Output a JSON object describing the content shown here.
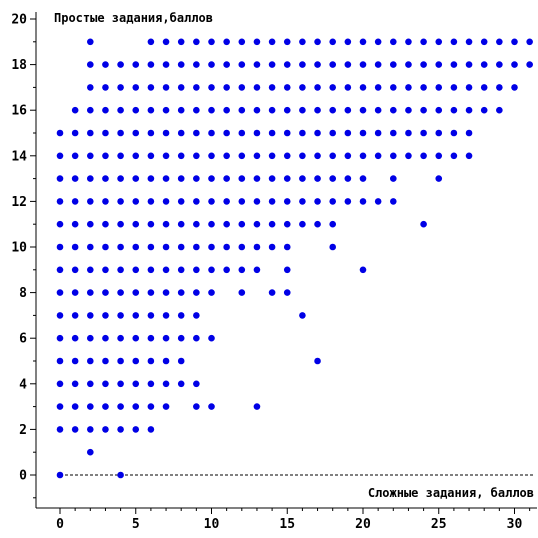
{
  "chart_data": {
    "type": "scatter",
    "ylabel": "Простые задания,баллов",
    "xlabel": "Сложные задания, баллов",
    "xlim": [
      0,
      31
    ],
    "ylim": [
      -1,
      20.5
    ],
    "x_ticks": [
      0,
      5,
      10,
      15,
      20,
      25,
      30
    ],
    "y_ticks": [
      0,
      2,
      4,
      6,
      8,
      10,
      12,
      14,
      16,
      18,
      20
    ],
    "baseline": 0,
    "point_color": "#0000e6",
    "points": [
      [
        0,
        0
      ],
      [
        4,
        0
      ],
      [
        2,
        1
      ],
      [
        0,
        2
      ],
      [
        1,
        2
      ],
      [
        2,
        2
      ],
      [
        3,
        2
      ],
      [
        4,
        2
      ],
      [
        5,
        2
      ],
      [
        6,
        2
      ],
      [
        0,
        3
      ],
      [
        1,
        3
      ],
      [
        2,
        3
      ],
      [
        3,
        3
      ],
      [
        4,
        3
      ],
      [
        5,
        3
      ],
      [
        6,
        3
      ],
      [
        7,
        3
      ],
      [
        9,
        3
      ],
      [
        10,
        3
      ],
      [
        13,
        3
      ],
      [
        0,
        4
      ],
      [
        1,
        4
      ],
      [
        2,
        4
      ],
      [
        3,
        4
      ],
      [
        4,
        4
      ],
      [
        5,
        4
      ],
      [
        6,
        4
      ],
      [
        7,
        4
      ],
      [
        8,
        4
      ],
      [
        9,
        4
      ],
      [
        0,
        5
      ],
      [
        1,
        5
      ],
      [
        2,
        5
      ],
      [
        3,
        5
      ],
      [
        4,
        5
      ],
      [
        5,
        5
      ],
      [
        6,
        5
      ],
      [
        7,
        5
      ],
      [
        8,
        5
      ],
      [
        17,
        5
      ],
      [
        0,
        6
      ],
      [
        1,
        6
      ],
      [
        2,
        6
      ],
      [
        3,
        6
      ],
      [
        4,
        6
      ],
      [
        5,
        6
      ],
      [
        6,
        6
      ],
      [
        7,
        6
      ],
      [
        8,
        6
      ],
      [
        9,
        6
      ],
      [
        10,
        6
      ],
      [
        0,
        7
      ],
      [
        1,
        7
      ],
      [
        2,
        7
      ],
      [
        3,
        7
      ],
      [
        4,
        7
      ],
      [
        5,
        7
      ],
      [
        6,
        7
      ],
      [
        7,
        7
      ],
      [
        8,
        7
      ],
      [
        9,
        7
      ],
      [
        16,
        7
      ],
      [
        0,
        8
      ],
      [
        1,
        8
      ],
      [
        2,
        8
      ],
      [
        3,
        8
      ],
      [
        4,
        8
      ],
      [
        5,
        8
      ],
      [
        6,
        8
      ],
      [
        7,
        8
      ],
      [
        8,
        8
      ],
      [
        9,
        8
      ],
      [
        10,
        8
      ],
      [
        12,
        8
      ],
      [
        14,
        8
      ],
      [
        15,
        8
      ],
      [
        0,
        9
      ],
      [
        1,
        9
      ],
      [
        2,
        9
      ],
      [
        3,
        9
      ],
      [
        4,
        9
      ],
      [
        5,
        9
      ],
      [
        6,
        9
      ],
      [
        7,
        9
      ],
      [
        8,
        9
      ],
      [
        9,
        9
      ],
      [
        10,
        9
      ],
      [
        11,
        9
      ],
      [
        12,
        9
      ],
      [
        13,
        9
      ],
      [
        15,
        9
      ],
      [
        20,
        9
      ],
      [
        0,
        10
      ],
      [
        1,
        10
      ],
      [
        2,
        10
      ],
      [
        3,
        10
      ],
      [
        4,
        10
      ],
      [
        5,
        10
      ],
      [
        6,
        10
      ],
      [
        7,
        10
      ],
      [
        8,
        10
      ],
      [
        9,
        10
      ],
      [
        10,
        10
      ],
      [
        11,
        10
      ],
      [
        12,
        10
      ],
      [
        13,
        10
      ],
      [
        14,
        10
      ],
      [
        15,
        10
      ],
      [
        18,
        10
      ],
      [
        0,
        11
      ],
      [
        1,
        11
      ],
      [
        2,
        11
      ],
      [
        3,
        11
      ],
      [
        4,
        11
      ],
      [
        5,
        11
      ],
      [
        6,
        11
      ],
      [
        7,
        11
      ],
      [
        8,
        11
      ],
      [
        9,
        11
      ],
      [
        10,
        11
      ],
      [
        11,
        11
      ],
      [
        12,
        11
      ],
      [
        13,
        11
      ],
      [
        14,
        11
      ],
      [
        15,
        11
      ],
      [
        16,
        11
      ],
      [
        17,
        11
      ],
      [
        18,
        11
      ],
      [
        24,
        11
      ],
      [
        0,
        12
      ],
      [
        1,
        12
      ],
      [
        2,
        12
      ],
      [
        3,
        12
      ],
      [
        4,
        12
      ],
      [
        5,
        12
      ],
      [
        6,
        12
      ],
      [
        7,
        12
      ],
      [
        8,
        12
      ],
      [
        9,
        12
      ],
      [
        10,
        12
      ],
      [
        11,
        12
      ],
      [
        12,
        12
      ],
      [
        13,
        12
      ],
      [
        14,
        12
      ],
      [
        15,
        12
      ],
      [
        16,
        12
      ],
      [
        17,
        12
      ],
      [
        18,
        12
      ],
      [
        19,
        12
      ],
      [
        20,
        12
      ],
      [
        21,
        12
      ],
      [
        22,
        12
      ],
      [
        0,
        13
      ],
      [
        1,
        13
      ],
      [
        2,
        13
      ],
      [
        3,
        13
      ],
      [
        4,
        13
      ],
      [
        5,
        13
      ],
      [
        6,
        13
      ],
      [
        7,
        13
      ],
      [
        8,
        13
      ],
      [
        9,
        13
      ],
      [
        10,
        13
      ],
      [
        11,
        13
      ],
      [
        12,
        13
      ],
      [
        13,
        13
      ],
      [
        14,
        13
      ],
      [
        15,
        13
      ],
      [
        16,
        13
      ],
      [
        17,
        13
      ],
      [
        18,
        13
      ],
      [
        19,
        13
      ],
      [
        20,
        13
      ],
      [
        22,
        13
      ],
      [
        25,
        13
      ],
      [
        0,
        14
      ],
      [
        1,
        14
      ],
      [
        2,
        14
      ],
      [
        3,
        14
      ],
      [
        4,
        14
      ],
      [
        5,
        14
      ],
      [
        6,
        14
      ],
      [
        7,
        14
      ],
      [
        8,
        14
      ],
      [
        9,
        14
      ],
      [
        10,
        14
      ],
      [
        11,
        14
      ],
      [
        12,
        14
      ],
      [
        13,
        14
      ],
      [
        14,
        14
      ],
      [
        15,
        14
      ],
      [
        16,
        14
      ],
      [
        17,
        14
      ],
      [
        18,
        14
      ],
      [
        19,
        14
      ],
      [
        20,
        14
      ],
      [
        21,
        14
      ],
      [
        22,
        14
      ],
      [
        23,
        14
      ],
      [
        24,
        14
      ],
      [
        25,
        14
      ],
      [
        26,
        14
      ],
      [
        27,
        14
      ],
      [
        0,
        15
      ],
      [
        1,
        15
      ],
      [
        2,
        15
      ],
      [
        3,
        15
      ],
      [
        4,
        15
      ],
      [
        5,
        15
      ],
      [
        6,
        15
      ],
      [
        7,
        15
      ],
      [
        8,
        15
      ],
      [
        9,
        15
      ],
      [
        10,
        15
      ],
      [
        11,
        15
      ],
      [
        12,
        15
      ],
      [
        13,
        15
      ],
      [
        14,
        15
      ],
      [
        15,
        15
      ],
      [
        16,
        15
      ],
      [
        17,
        15
      ],
      [
        18,
        15
      ],
      [
        19,
        15
      ],
      [
        20,
        15
      ],
      [
        21,
        15
      ],
      [
        22,
        15
      ],
      [
        23,
        15
      ],
      [
        24,
        15
      ],
      [
        25,
        15
      ],
      [
        26,
        15
      ],
      [
        27,
        15
      ],
      [
        1,
        16
      ],
      [
        2,
        16
      ],
      [
        3,
        16
      ],
      [
        4,
        16
      ],
      [
        5,
        16
      ],
      [
        6,
        16
      ],
      [
        7,
        16
      ],
      [
        8,
        16
      ],
      [
        9,
        16
      ],
      [
        10,
        16
      ],
      [
        11,
        16
      ],
      [
        12,
        16
      ],
      [
        13,
        16
      ],
      [
        14,
        16
      ],
      [
        15,
        16
      ],
      [
        16,
        16
      ],
      [
        17,
        16
      ],
      [
        18,
        16
      ],
      [
        19,
        16
      ],
      [
        20,
        16
      ],
      [
        21,
        16
      ],
      [
        22,
        16
      ],
      [
        23,
        16
      ],
      [
        24,
        16
      ],
      [
        25,
        16
      ],
      [
        26,
        16
      ],
      [
        27,
        16
      ],
      [
        28,
        16
      ],
      [
        29,
        16
      ],
      [
        2,
        17
      ],
      [
        3,
        17
      ],
      [
        4,
        17
      ],
      [
        5,
        17
      ],
      [
        6,
        17
      ],
      [
        7,
        17
      ],
      [
        8,
        17
      ],
      [
        9,
        17
      ],
      [
        10,
        17
      ],
      [
        11,
        17
      ],
      [
        12,
        17
      ],
      [
        13,
        17
      ],
      [
        14,
        17
      ],
      [
        15,
        17
      ],
      [
        16,
        17
      ],
      [
        17,
        17
      ],
      [
        18,
        17
      ],
      [
        19,
        17
      ],
      [
        20,
        17
      ],
      [
        21,
        17
      ],
      [
        22,
        17
      ],
      [
        23,
        17
      ],
      [
        24,
        17
      ],
      [
        25,
        17
      ],
      [
        26,
        17
      ],
      [
        27,
        17
      ],
      [
        28,
        17
      ],
      [
        29,
        17
      ],
      [
        30,
        17
      ],
      [
        2,
        18
      ],
      [
        3,
        18
      ],
      [
        4,
        18
      ],
      [
        5,
        18
      ],
      [
        6,
        18
      ],
      [
        7,
        18
      ],
      [
        8,
        18
      ],
      [
        9,
        18
      ],
      [
        10,
        18
      ],
      [
        11,
        18
      ],
      [
        12,
        18
      ],
      [
        13,
        18
      ],
      [
        14,
        18
      ],
      [
        15,
        18
      ],
      [
        16,
        18
      ],
      [
        17,
        18
      ],
      [
        18,
        18
      ],
      [
        19,
        18
      ],
      [
        20,
        18
      ],
      [
        21,
        18
      ],
      [
        22,
        18
      ],
      [
        23,
        18
      ],
      [
        24,
        18
      ],
      [
        25,
        18
      ],
      [
        26,
        18
      ],
      [
        27,
        18
      ],
      [
        28,
        18
      ],
      [
        29,
        18
      ],
      [
        30,
        18
      ],
      [
        31,
        18
      ],
      [
        2,
        19
      ],
      [
        6,
        19
      ],
      [
        7,
        19
      ],
      [
        8,
        19
      ],
      [
        9,
        19
      ],
      [
        10,
        19
      ],
      [
        11,
        19
      ],
      [
        12,
        19
      ],
      [
        13,
        19
      ],
      [
        14,
        19
      ],
      [
        15,
        19
      ],
      [
        16,
        19
      ],
      [
        17,
        19
      ],
      [
        18,
        19
      ],
      [
        19,
        19
      ],
      [
        20,
        19
      ],
      [
        21,
        19
      ],
      [
        22,
        19
      ],
      [
        23,
        19
      ],
      [
        24,
        19
      ],
      [
        25,
        19
      ],
      [
        26,
        19
      ],
      [
        27,
        19
      ],
      [
        28,
        19
      ],
      [
        29,
        19
      ],
      [
        30,
        19
      ],
      [
        31,
        19
      ]
    ]
  }
}
